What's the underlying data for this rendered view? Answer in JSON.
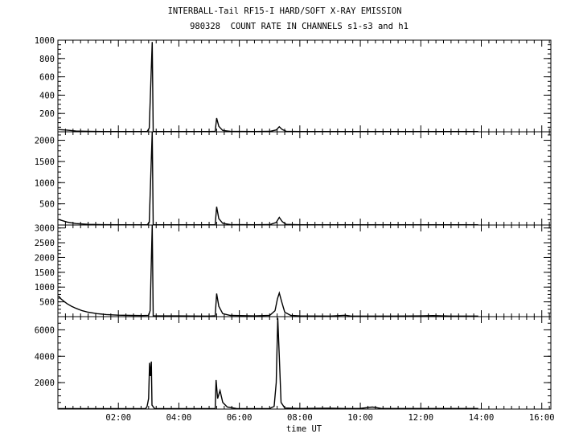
{
  "title_line1": "INTERBALL-Tail RF15-I HARD/SOFT X-RAY EMISSION",
  "title_line2": "980328  COUNT RATE IN CHANNELS s1-s3 and h1",
  "chart_data": {
    "type": "line",
    "xlabel": "time UT",
    "x_unit": "hours UT",
    "xlim": [
      0,
      16.3
    ],
    "x_ticks": [
      2,
      4,
      6,
      8,
      10,
      12,
      14,
      16
    ],
    "x_tick_labels": [
      "02:00",
      "04:00",
      "06:00",
      "08:00",
      "10:00",
      "12:00",
      "14:00",
      "16:00"
    ],
    "grid": false,
    "panels": [
      {
        "channel": "s1",
        "ylim": [
          0,
          1000
        ],
        "y_ticks": [
          200,
          400,
          600,
          800,
          1000
        ],
        "y_tick_labels": [
          "200",
          "400",
          "600",
          "800",
          "1000"
        ],
        "series": [
          {
            "points": [
              [
                0.02,
                25
              ],
              [
                0.3,
                18
              ],
              [
                0.6,
                8
              ],
              [
                1.0,
                4
              ],
              [
                1.5,
                3
              ],
              [
                2.0,
                3
              ],
              [
                2.5,
                3
              ],
              [
                2.95,
                3
              ],
              [
                3.02,
                40
              ],
              [
                3.12,
                980
              ],
              [
                3.15,
                3
              ],
              [
                4.0,
                3
              ],
              [
                5.0,
                3
              ],
              [
                5.2,
                4
              ],
              [
                5.25,
                150
              ],
              [
                5.32,
                60
              ],
              [
                5.45,
                15
              ],
              [
                5.7,
                5
              ],
              [
                6.5,
                3
              ],
              [
                7.0,
                4
              ],
              [
                7.22,
                20
              ],
              [
                7.32,
                55
              ],
              [
                7.42,
                25
              ],
              [
                7.55,
                5
              ],
              [
                8.0,
                3
              ],
              [
                9.0,
                3
              ],
              [
                10.0,
                3
              ],
              [
                11.0,
                3
              ],
              [
                12.0,
                3
              ],
              [
                13.0,
                3
              ],
              [
                13.9,
                3
              ]
            ]
          }
        ]
      },
      {
        "channel": "s2",
        "ylim": [
          0,
          2200
        ],
        "y_ticks": [
          500,
          1000,
          1500,
          2000
        ],
        "y_tick_labels": [
          "500",
          "1000",
          "1500",
          "2000"
        ],
        "series": [
          {
            "points": [
              [
                0.02,
                130
              ],
              [
                0.3,
                70
              ],
              [
                0.6,
                35
              ],
              [
                1.0,
                15
              ],
              [
                1.5,
                8
              ],
              [
                2.0,
                6
              ],
              [
                2.5,
                5
              ],
              [
                2.95,
                5
              ],
              [
                3.02,
                60
              ],
              [
                3.12,
                2200
              ],
              [
                3.15,
                5
              ],
              [
                4.0,
                5
              ],
              [
                5.0,
                5
              ],
              [
                5.2,
                8
              ],
              [
                5.25,
                430
              ],
              [
                5.32,
                150
              ],
              [
                5.45,
                40
              ],
              [
                5.7,
                10
              ],
              [
                6.5,
                6
              ],
              [
                7.0,
                10
              ],
              [
                7.22,
                60
              ],
              [
                7.32,
                180
              ],
              [
                7.42,
                80
              ],
              [
                7.55,
                15
              ],
              [
                8.0,
                6
              ],
              [
                9.0,
                5
              ],
              [
                10.0,
                5
              ],
              [
                11.0,
                5
              ],
              [
                12.0,
                5
              ],
              [
                13.0,
                5
              ],
              [
                13.9,
                5
              ]
            ]
          }
        ]
      },
      {
        "channel": "s3",
        "ylim": [
          0,
          3100
        ],
        "y_ticks": [
          500,
          1000,
          1500,
          2000,
          2500,
          3000
        ],
        "y_tick_labels": [
          "500",
          "1000",
          "1500",
          "2000",
          "2500",
          "3000"
        ],
        "series": [
          {
            "points": [
              [
                0.02,
                700
              ],
              [
                0.1,
                600
              ],
              [
                0.2,
                520
              ],
              [
                0.3,
                440
              ],
              [
                0.45,
                350
              ],
              [
                0.6,
                280
              ],
              [
                0.8,
                200
              ],
              [
                1.0,
                150
              ],
              [
                1.3,
                100
              ],
              [
                1.6,
                70
              ],
              [
                2.0,
                50
              ],
              [
                2.4,
                40
              ],
              [
                2.8,
                35
              ],
              [
                3.0,
                40
              ],
              [
                3.05,
                200
              ],
              [
                3.12,
                3100
              ],
              [
                3.15,
                30
              ],
              [
                4.0,
                25
              ],
              [
                5.0,
                20
              ],
              [
                5.2,
                30
              ],
              [
                5.25,
                780
              ],
              [
                5.32,
                350
              ],
              [
                5.45,
                100
              ],
              [
                5.7,
                40
              ],
              [
                6.5,
                25
              ],
              [
                7.0,
                40
              ],
              [
                7.18,
                200
              ],
              [
                7.26,
                600
              ],
              [
                7.32,
                800
              ],
              [
                7.4,
                500
              ],
              [
                7.5,
                150
              ],
              [
                7.7,
                40
              ],
              [
                8.0,
                25
              ],
              [
                9.0,
                20
              ],
              [
                9.5,
                45
              ],
              [
                9.7,
                20
              ],
              [
                10.0,
                20
              ],
              [
                11.0,
                20
              ],
              [
                12.0,
                25
              ],
              [
                12.4,
                35
              ],
              [
                13.0,
                20
              ],
              [
                13.9,
                20
              ]
            ]
          }
        ]
      },
      {
        "channel": "h1",
        "ylim": [
          0,
          7000
        ],
        "y_ticks": [
          2000,
          4000,
          6000
        ],
        "y_tick_labels": [
          "2000",
          "4000",
          "6000"
        ],
        "series": [
          {
            "points": [
              [
                0.02,
                30
              ],
              [
                1.0,
                30
              ],
              [
                2.0,
                30
              ],
              [
                2.9,
                30
              ],
              [
                2.95,
                200
              ],
              [
                3.0,
                800
              ],
              [
                3.03,
                3500
              ],
              [
                3.06,
                2500
              ],
              [
                3.09,
                3600
              ],
              [
                3.11,
                300
              ],
              [
                3.2,
                30
              ],
              [
                4.0,
                30
              ],
              [
                5.0,
                30
              ],
              [
                5.2,
                30
              ],
              [
                5.23,
                2200
              ],
              [
                5.28,
                800
              ],
              [
                5.36,
                1400
              ],
              [
                5.45,
                500
              ],
              [
                5.6,
                150
              ],
              [
                5.9,
                40
              ],
              [
                6.5,
                30
              ],
              [
                7.0,
                40
              ],
              [
                7.15,
                200
              ],
              [
                7.22,
                2000
              ],
              [
                7.27,
                6900
              ],
              [
                7.32,
                4000
              ],
              [
                7.38,
                500
              ],
              [
                7.5,
                80
              ],
              [
                8.0,
                40
              ],
              [
                9.0,
                60
              ],
              [
                9.5,
                40
              ],
              [
                10.0,
                50
              ],
              [
                10.4,
                150
              ],
              [
                10.7,
                40
              ],
              [
                11.0,
                40
              ],
              [
                12.0,
                40
              ],
              [
                13.0,
                40
              ],
              [
                13.9,
                40
              ]
            ]
          }
        ]
      }
    ]
  }
}
